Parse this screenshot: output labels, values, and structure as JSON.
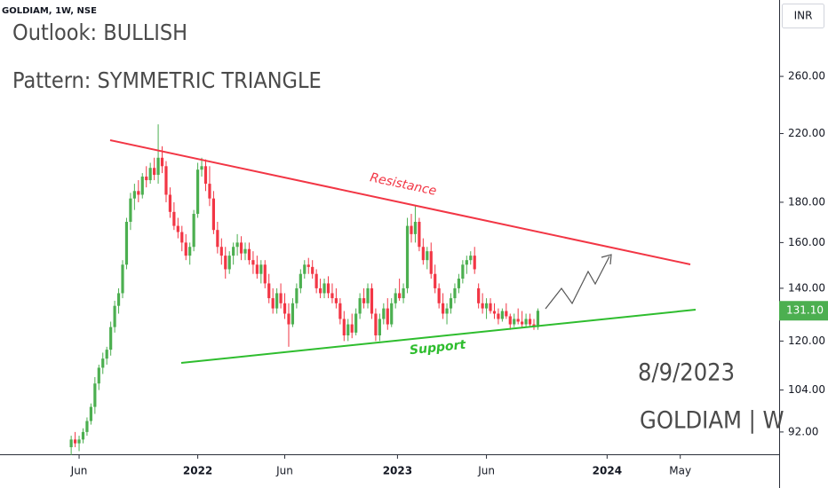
{
  "chart_data": {
    "type": "candlestick",
    "symbol_header": "GOLDIAM, 1W, NSE",
    "title": "Outlook: BULLISH",
    "subtitle": "Pattern: SYMMETRIC TRIANGLE",
    "annotations": {
      "resistance": "Resistance",
      "support": "Support",
      "date": "8/9/2023",
      "footer": "GOLDIAM | W"
    },
    "currency": "INR",
    "up_color": "#4caf50",
    "down_color": "#f23645",
    "log_scale": true,
    "grid": false,
    "ylim": [
      86.2,
      325
    ],
    "yticks": [
      {
        "value": 260,
        "label": "260.00"
      },
      {
        "value": 220,
        "label": "220.00"
      },
      {
        "value": 180,
        "label": "180.00"
      },
      {
        "value": 160,
        "label": "160.00"
      },
      {
        "value": 140,
        "label": "140.00"
      },
      {
        "value": 120,
        "label": "120.00"
      },
      {
        "value": 104,
        "label": "104.00"
      },
      {
        "value": 92,
        "label": "92.00"
      }
    ],
    "xlim": [
      -18,
      179
    ],
    "xticks": [
      {
        "value": 2,
        "label": "Jun"
      },
      {
        "value": 32,
        "label": "2022"
      },
      {
        "value": 54,
        "label": "Jun"
      },
      {
        "value": 82.5,
        "label": "2023"
      },
      {
        "value": 105,
        "label": "Jun"
      },
      {
        "value": 135.5,
        "label": "2024"
      },
      {
        "value": 154,
        "label": "May"
      }
    ],
    "last_price": {
      "value": 131.1,
      "label": "131.10"
    },
    "candles": [
      [
        88,
        91,
        86,
        90
      ],
      [
        90,
        92,
        88,
        89
      ],
      [
        89,
        91,
        87,
        90
      ],
      [
        90,
        93,
        89,
        92
      ],
      [
        92,
        96,
        91,
        95
      ],
      [
        95,
        100,
        94,
        99
      ],
      [
        99,
        108,
        97,
        106
      ],
      [
        106,
        112,
        104,
        111
      ],
      [
        111,
        116,
        109,
        114
      ],
      [
        114,
        118,
        112,
        117
      ],
      [
        117,
        127,
        115,
        125
      ],
      [
        125,
        135,
        123,
        133
      ],
      [
        133,
        140,
        130,
        138
      ],
      [
        138,
        152,
        136,
        150
      ],
      [
        150,
        172,
        148,
        170
      ],
      [
        170,
        185,
        166,
        182
      ],
      [
        182,
        190,
        176,
        186
      ],
      [
        186,
        192,
        180,
        184
      ],
      [
        184,
        196,
        182,
        194
      ],
      [
        194,
        200,
        188,
        192
      ],
      [
        192,
        202,
        190,
        199
      ],
      [
        199,
        205,
        192,
        195
      ],
      [
        195,
        226,
        190,
        205
      ],
      [
        205,
        212,
        196,
        200
      ],
      [
        200,
        203,
        180,
        184
      ],
      [
        184,
        188,
        172,
        175
      ],
      [
        175,
        180,
        166,
        168
      ],
      [
        168,
        172,
        162,
        165
      ],
      [
        165,
        168,
        156,
        160
      ],
      [
        160,
        164,
        152,
        154
      ],
      [
        154,
        160,
        150,
        158
      ],
      [
        158,
        176,
        156,
        174
      ],
      [
        174,
        202,
        172,
        198
      ],
      [
        198,
        205,
        194,
        200
      ],
      [
        200,
        204,
        186,
        190
      ],
      [
        190,
        200,
        178,
        182
      ],
      [
        182,
        186,
        164,
        166
      ],
      [
        166,
        170,
        155,
        158
      ],
      [
        158,
        162,
        150,
        154
      ],
      [
        154,
        158,
        144,
        148
      ],
      [
        148,
        156,
        146,
        154
      ],
      [
        154,
        160,
        150,
        158
      ],
      [
        158,
        164,
        154,
        160
      ],
      [
        160,
        163,
        152,
        155
      ],
      [
        155,
        160,
        152,
        157
      ],
      [
        157,
        160,
        150,
        152
      ],
      [
        152,
        156,
        146,
        150
      ],
      [
        150,
        154,
        144,
        146
      ],
      [
        146,
        152,
        142,
        150
      ],
      [
        150,
        152,
        140,
        142
      ],
      [
        142,
        146,
        134,
        136
      ],
      [
        136,
        140,
        130,
        132
      ],
      [
        132,
        140,
        130,
        138
      ],
      [
        138,
        142,
        132,
        134
      ],
      [
        134,
        138,
        128,
        130
      ],
      [
        130,
        134,
        118,
        126
      ],
      [
        126,
        136,
        125,
        134
      ],
      [
        134,
        142,
        132,
        140
      ],
      [
        140,
        148,
        138,
        146
      ],
      [
        146,
        152,
        144,
        150
      ],
      [
        150,
        153,
        146,
        149
      ],
      [
        149,
        152,
        144,
        146
      ],
      [
        146,
        148,
        138,
        140
      ],
      [
        140,
        144,
        136,
        138
      ],
      [
        138,
        144,
        136,
        142
      ],
      [
        142,
        145,
        136,
        138
      ],
      [
        138,
        142,
        134,
        136
      ],
      [
        136,
        140,
        132,
        134
      ],
      [
        134,
        136,
        126,
        128
      ],
      [
        128,
        131,
        120,
        122
      ],
      [
        122,
        128,
        120,
        126
      ],
      [
        126,
        130,
        121,
        123
      ],
      [
        123,
        132,
        122,
        130
      ],
      [
        130,
        138,
        128,
        136
      ],
      [
        136,
        140,
        132,
        134
      ],
      [
        134,
        142,
        132,
        140
      ],
      [
        140,
        142,
        128,
        130
      ],
      [
        130,
        132,
        120,
        122
      ],
      [
        122,
        130,
        120,
        128
      ],
      [
        128,
        134,
        126,
        132
      ],
      [
        132,
        136,
        124,
        126
      ],
      [
        126,
        136,
        125,
        134
      ],
      [
        134,
        140,
        132,
        138
      ],
      [
        138,
        144,
        135,
        136
      ],
      [
        136,
        142,
        134,
        140
      ],
      [
        140,
        172,
        138,
        168
      ],
      [
        168,
        174,
        160,
        164
      ],
      [
        164,
        178,
        160,
        170
      ],
      [
        170,
        172,
        156,
        158
      ],
      [
        158,
        162,
        150,
        152
      ],
      [
        152,
        158,
        148,
        156
      ],
      [
        156,
        160,
        144,
        146
      ],
      [
        146,
        150,
        138,
        140
      ],
      [
        140,
        142,
        132,
        134
      ],
      [
        134,
        138,
        128,
        130
      ],
      [
        130,
        134,
        126,
        132
      ],
      [
        132,
        138,
        130,
        136
      ],
      [
        136,
        142,
        134,
        140
      ],
      [
        140,
        146,
        138,
        144
      ],
      [
        144,
        152,
        142,
        150
      ],
      [
        150,
        154,
        146,
        152
      ],
      [
        152,
        156,
        150,
        154
      ],
      [
        154,
        158,
        146,
        148
      ],
      [
        140,
        142,
        132,
        134
      ],
      [
        134,
        138,
        130,
        132
      ],
      [
        132,
        136,
        128,
        134
      ],
      [
        134,
        136,
        130,
        131
      ],
      [
        131,
        134,
        128,
        130
      ],
      [
        130,
        132,
        126,
        128
      ],
      [
        128,
        132,
        127,
        131
      ],
      [
        131,
        134,
        128,
        129
      ],
      [
        129,
        130,
        124,
        126
      ],
      [
        126,
        130,
        125,
        128
      ],
      [
        128,
        132,
        126,
        127
      ],
      [
        127,
        131,
        125,
        126
      ],
      [
        126,
        130,
        125,
        128
      ],
      [
        128,
        130,
        125,
        126
      ],
      [
        126,
        128,
        124,
        125
      ],
      [
        125,
        132,
        124,
        131.1
      ]
    ]
  }
}
